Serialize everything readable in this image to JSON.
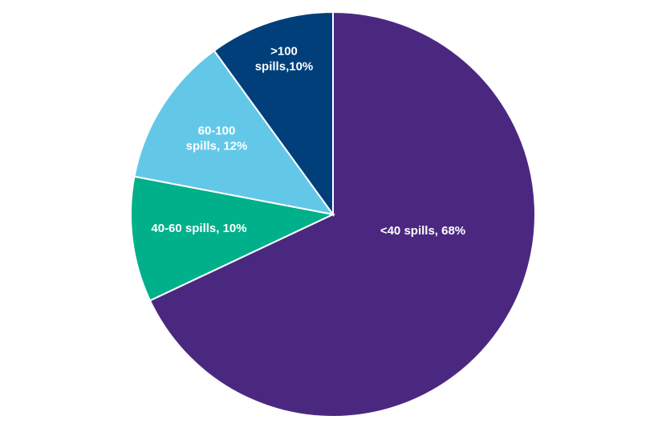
{
  "chart_data": {
    "type": "pie",
    "title": "",
    "start_angle_deg": 0,
    "direction": "clockwise",
    "slices": [
      {
        "name": "<40 spills",
        "value": 68,
        "color": "#4b2880",
        "label_lines": [
          "<40 spills, 68%"
        ]
      },
      {
        "name": "40-60 spills",
        "value": 10,
        "color": "#00b08a",
        "label_lines": [
          "40-60 spills, 10%"
        ]
      },
      {
        "name": "60-100 spills",
        "value": 12,
        "color": "#63c8e8",
        "label_lines": [
          "60-100",
          "spills, 12%"
        ]
      },
      {
        "name": ">100 spills",
        "value": 10,
        "color": "#003f7a",
        "label_lines": [
          ">100",
          "spills,10%"
        ]
      }
    ]
  }
}
